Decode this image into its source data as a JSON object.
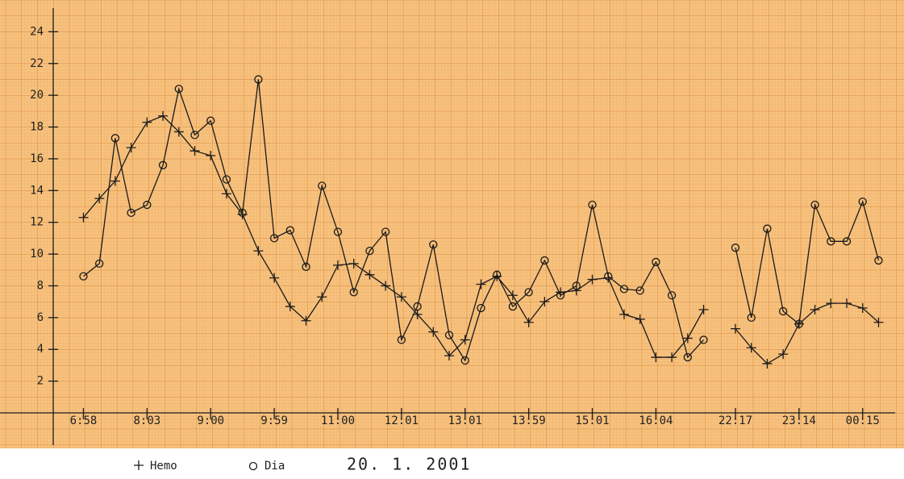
{
  "chart_data": {
    "type": "line",
    "date": "20. 1. 2001",
    "x": [
      0,
      1,
      2,
      3,
      4,
      5,
      6,
      7,
      8,
      9,
      10,
      11,
      12,
      13,
      14,
      15,
      16,
      17,
      18,
      19,
      20,
      21,
      22,
      23,
      24,
      25,
      26,
      27,
      28,
      29,
      30,
      31,
      32,
      33,
      34,
      35,
      36,
      37,
      38,
      39,
      40,
      41,
      42,
      43,
      44,
      45,
      46,
      47,
      48,
      49,
      50
    ],
    "series": [
      {
        "name": "Hemo",
        "marker": "plus",
        "color": "#1a1a1a",
        "values": [
          12.3,
          13.5,
          14.6,
          16.7,
          18.3,
          18.7,
          17.7,
          16.5,
          16.2,
          13.8,
          12.5,
          10.2,
          8.5,
          6.7,
          5.8,
          7.3,
          9.3,
          9.4,
          8.7,
          8.0,
          7.3,
          6.2,
          5.1,
          3.6,
          4.6,
          8.1,
          8.6,
          7.4,
          5.7,
          7.0,
          7.6,
          7.7,
          8.4,
          8.5,
          6.2,
          5.9,
          3.5,
          3.5,
          4.7,
          6.5,
          null,
          5.3,
          4.1,
          3.1,
          3.7,
          5.6,
          6.5,
          6.9,
          6.9,
          6.6,
          5.7
        ]
      },
      {
        "name": "Dia",
        "marker": "circle",
        "color": "#1a1a1a",
        "values": [
          8.6,
          9.4,
          17.3,
          12.6,
          13.1,
          15.6,
          20.4,
          17.5,
          18.4,
          14.7,
          12.6,
          21.0,
          11.0,
          11.5,
          9.2,
          14.3,
          11.4,
          7.6,
          10.2,
          11.4,
          4.6,
          6.7,
          10.6,
          4.9,
          3.3,
          6.6,
          8.7,
          6.7,
          7.6,
          9.6,
          7.4,
          8.0,
          13.1,
          8.6,
          7.8,
          7.7,
          9.5,
          7.4,
          3.5,
          4.6,
          null,
          10.4,
          6.0,
          11.6,
          6.4,
          5.6,
          13.1,
          10.8,
          10.8,
          13.3,
          9.6
        ]
      }
    ],
    "xlim": [
      -1.9,
      51.6
    ],
    "xticks": [
      {
        "value": 0,
        "label": "6:58"
      },
      {
        "value": 4,
        "label": "8:03"
      },
      {
        "value": 8,
        "label": "9:00"
      },
      {
        "value": 12,
        "label": "9:59"
      },
      {
        "value": 16,
        "label": "11:00"
      },
      {
        "value": 20,
        "label": "12:01"
      },
      {
        "value": 24,
        "label": "13:01"
      },
      {
        "value": 28,
        "label": "13:59"
      },
      {
        "value": 32,
        "label": "15:01"
      },
      {
        "value": 36,
        "label": "16:04"
      },
      {
        "value": 41,
        "label": "22:17"
      },
      {
        "value": 45,
        "label": "23:14"
      },
      {
        "value": 49,
        "label": "00:15"
      }
    ],
    "ylim": [
      0,
      26
    ],
    "yticks": [
      2,
      4,
      6,
      8,
      10,
      12,
      14,
      16,
      18,
      20,
      22,
      24
    ],
    "grid": true
  }
}
